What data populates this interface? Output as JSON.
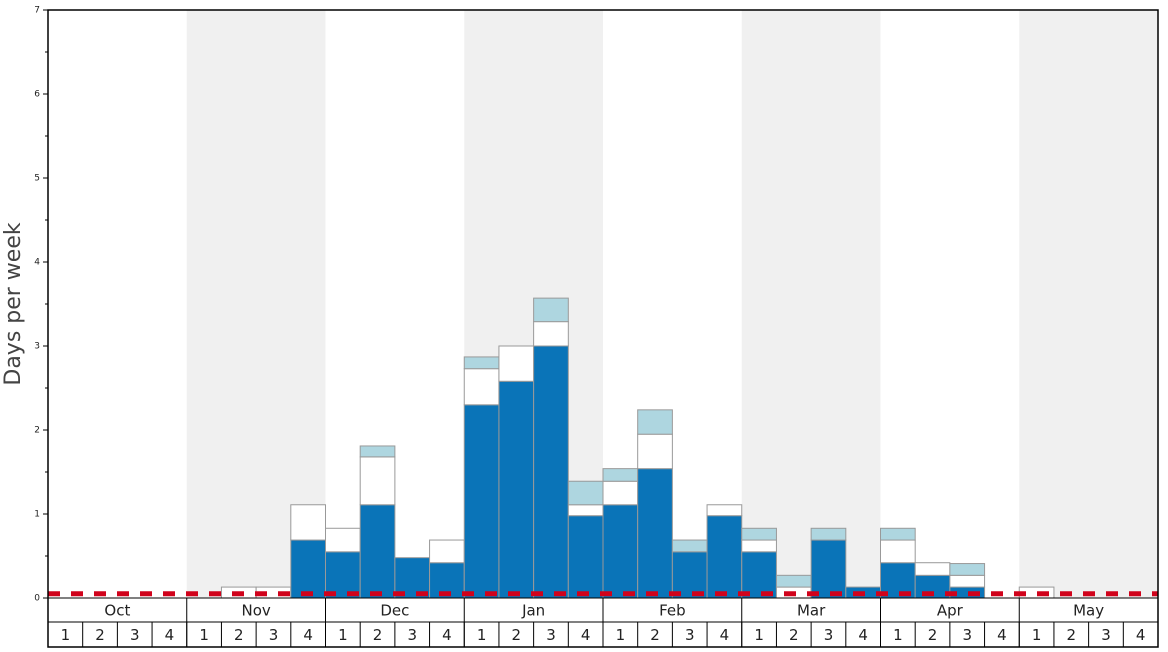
{
  "chart_data": {
    "type": "stacked_bar",
    "y_label": "Days per week",
    "x_groups": [
      "Oct",
      "Nov",
      "Dec",
      "Jan",
      "Feb",
      "Mar",
      "Apr",
      "May"
    ],
    "categories": [
      "1",
      "2",
      "3",
      "4",
      "1",
      "2",
      "3",
      "4",
      "1",
      "2",
      "3",
      "4",
      "1",
      "2",
      "3",
      "4",
      "1",
      "2",
      "3",
      "4",
      "1",
      "2",
      "3",
      "4",
      "1",
      "2",
      "3",
      "4",
      "1",
      "2",
      "3",
      "4"
    ],
    "series": [
      {
        "color": "#0a74b8",
        "values": [
          0,
          0,
          0,
          0,
          0,
          0,
          0,
          0.69,
          0.55,
          1.11,
          0.48,
          0.42,
          2.3,
          2.58,
          3.0,
          0.98,
          1.11,
          1.54,
          0.55,
          0.98,
          0.55,
          0,
          0.69,
          0.13,
          0.42,
          0.27,
          0.13,
          0,
          0,
          0,
          0,
          0
        ]
      },
      {
        "color": "#ffffff",
        "values": [
          0,
          0,
          0,
          0,
          0,
          0.13,
          0.13,
          0.42,
          0.28,
          0.57,
          0,
          0.27,
          0.43,
          0.42,
          0.29,
          0.13,
          0.28,
          0.41,
          0,
          0.13,
          0.14,
          0.13,
          0,
          0,
          0.27,
          0.15,
          0.14,
          0,
          0.13,
          0,
          0,
          0
        ]
      },
      {
        "color": "#aed6e0",
        "values": [
          0,
          0,
          0,
          0,
          0,
          0,
          0,
          0,
          0,
          0.13,
          0,
          0,
          0.14,
          0,
          0.28,
          0.28,
          0.15,
          0.29,
          0.14,
          0,
          0.14,
          0.14,
          0.14,
          0,
          0.14,
          0,
          0.14,
          0,
          0,
          0,
          0,
          0
        ]
      }
    ],
    "ylim": [
      0,
      7
    ],
    "yticks": [
      0,
      1,
      2,
      3,
      4,
      5,
      6,
      7
    ],
    "yminorticks": [
      0.5,
      1.5,
      2.5,
      3.5,
      4.5,
      5.5,
      6.5
    ],
    "reference_line": {
      "value": 0.05,
      "color": "#d0021b"
    },
    "alternate_band_color": "#f0f0f0"
  }
}
